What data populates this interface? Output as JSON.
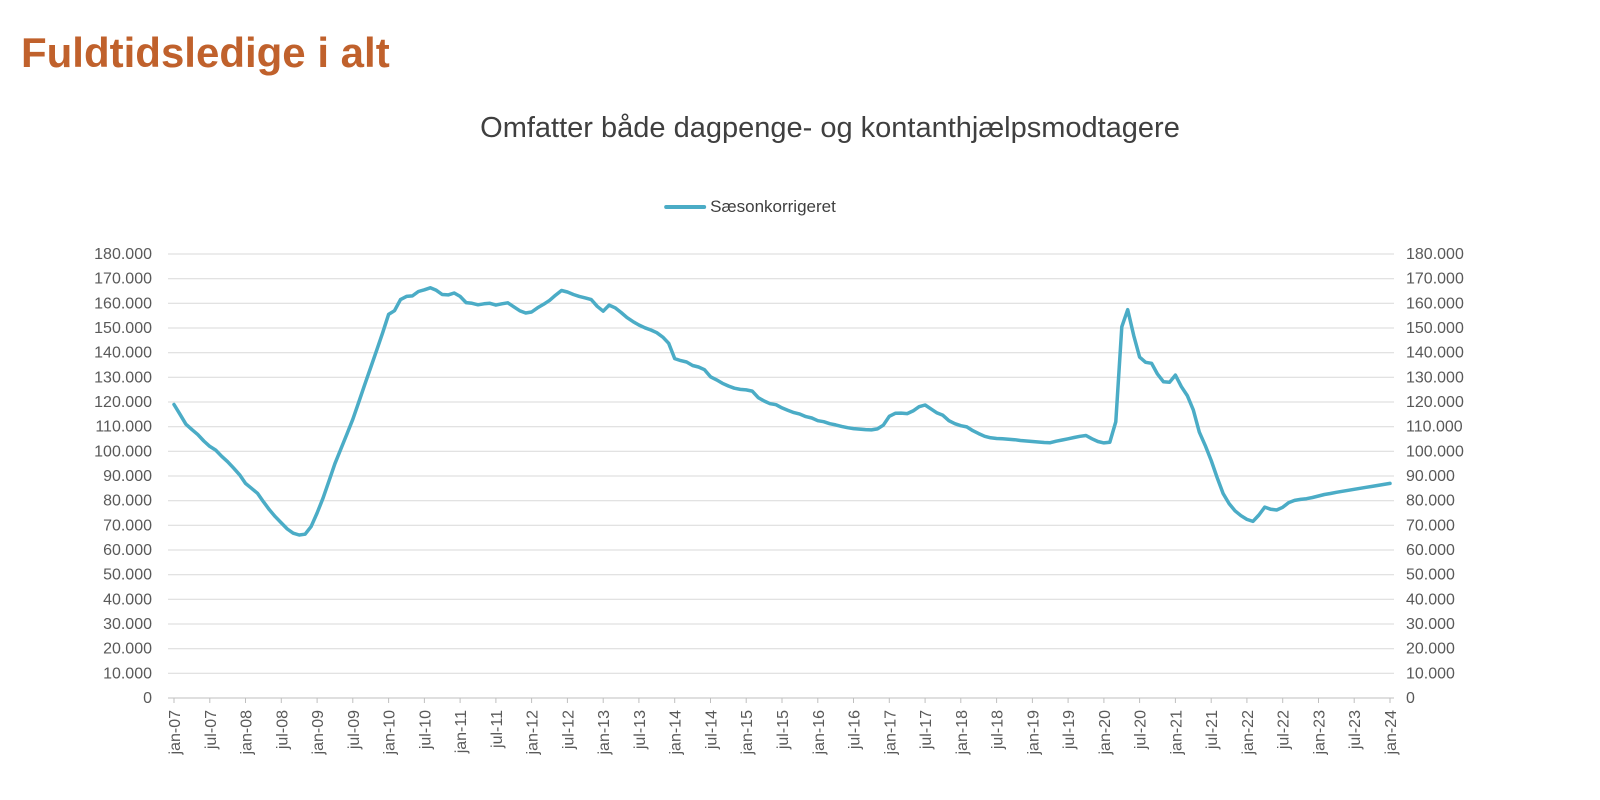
{
  "page": {
    "title": "Fuldtidsledige i alt"
  },
  "chart": {
    "subtitle": "Omfatter både dagpenge- og kontanthjælpsmodtagere",
    "legend_label": "Sæsonkorrigeret"
  },
  "colors": {
    "title": "#C0612C",
    "subtitle": "#3F3F3F",
    "legend_text": "#3F3F3F",
    "axis_text": "#595959",
    "gridline": "#D9D9D9",
    "axis_line": "#BFBFBF",
    "line": "#4BACC6"
  },
  "chart_data": {
    "type": "line",
    "title": "Omfatter både dagpenge- og kontanthjælpsmodtagere",
    "legend_position": "top-center",
    "grid": "horizontal",
    "dual_y_axis": true,
    "ylim": [
      0,
      180000
    ],
    "ytick_step": 10000,
    "ytick_labels": [
      "0",
      "10.000",
      "20.000",
      "30.000",
      "40.000",
      "50.000",
      "60.000",
      "70.000",
      "80.000",
      "90.000",
      "100.000",
      "110.000",
      "120.000",
      "130.000",
      "140.000",
      "150.000",
      "160.000",
      "170.000",
      "180.000"
    ],
    "x_start": "jan-07",
    "x_end": "jan-24",
    "points_per_tick": 6,
    "x_tick_labels": [
      "jan-07",
      "jul-07",
      "jan-08",
      "jul-08",
      "jan-09",
      "jul-09",
      "jan-10",
      "jul-10",
      "jan-11",
      "jul-11",
      "jan-12",
      "jul-12",
      "jan-13",
      "jul-13",
      "jan-14",
      "jul-14",
      "jan-15",
      "jul-15",
      "jan-16",
      "jul-16",
      "jan-17",
      "jul-17",
      "jan-18",
      "jul-18",
      "jan-19",
      "jul-19",
      "jan-20",
      "jul-20",
      "jan-21",
      "jul-21",
      "jan-22",
      "jul-22",
      "jan-23",
      "jul-23",
      "jan-24"
    ],
    "series": [
      {
        "name": "Sæsonkorrigeret",
        "color": "#4BACC6",
        "values": [
          119000,
          115000,
          111000,
          108800,
          106800,
          104200,
          102000,
          100500,
          98000,
          95800,
          93200,
          90500,
          87000,
          85000,
          83000,
          79600,
          76300,
          73500,
          71000,
          68500,
          66800,
          66100,
          66400,
          69500,
          75000,
          81000,
          88000,
          95000,
          101000,
          107000,
          113000,
          120000,
          127000,
          134000,
          141000,
          148000,
          155500,
          157000,
          161500,
          162800,
          163000,
          164800,
          165500,
          166300,
          165300,
          163600,
          163400,
          164200,
          162800,
          160300,
          160000,
          159400,
          159800,
          160000,
          159300,
          159800,
          160200,
          158600,
          157000,
          156100,
          156500,
          158200,
          159600,
          161200,
          163300,
          165200,
          164600,
          163600,
          162800,
          162200,
          161500,
          158800,
          156800,
          159300,
          158200,
          156300,
          154200,
          152600,
          151200,
          150100,
          149200,
          148100,
          146300,
          143800,
          137600,
          136800,
          136200,
          134800,
          134200,
          133100,
          130200,
          129000,
          127600,
          126500,
          125600,
          125100,
          124900,
          124400,
          121800,
          120400,
          119300,
          118900,
          117600,
          116600,
          115700,
          115100,
          114100,
          113500,
          112400,
          112000,
          111200,
          110700,
          110100,
          109600,
          109200,
          109000,
          108800,
          108700,
          109100,
          110600,
          114200,
          115400,
          115500,
          115300,
          116400,
          118100,
          118800,
          117200,
          115600,
          114600,
          112400,
          111200,
          110400,
          109900,
          108400,
          107200,
          106100,
          105500,
          105200,
          105100,
          104900,
          104700,
          104400,
          104200,
          104000,
          103800,
          103600,
          103500,
          104100,
          104600,
          105100,
          105600,
          106100,
          106400,
          105100,
          104000,
          103400,
          103700,
          112000,
          150500,
          157400,
          147000,
          138200,
          136100,
          135700,
          131300,
          128200,
          128000,
          130900,
          126200,
          122600,
          116800,
          107800,
          102400,
          96300,
          89400,
          82900,
          78800,
          75900,
          73900,
          72400,
          71600,
          74200,
          77400,
          76500,
          76200,
          77300,
          79200,
          80100,
          80500,
          80800,
          81300,
          81900,
          82500,
          82900,
          83400,
          83800,
          84200,
          84600,
          85000,
          85400,
          85800,
          86200,
          86600,
          87000
        ]
      }
    ]
  }
}
